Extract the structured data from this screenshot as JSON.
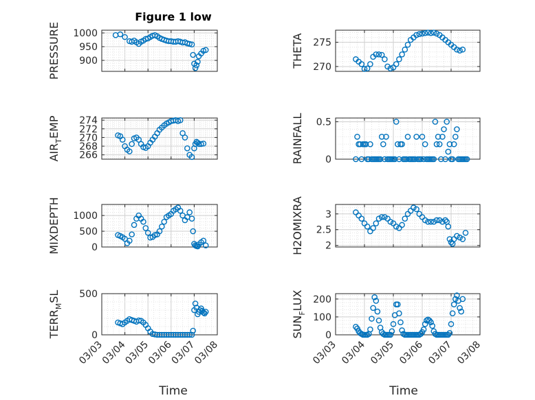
{
  "figure": {
    "title": "Figure 1 low",
    "series_color": "#0072BD"
  },
  "chart_data": [
    {
      "type": "scatter",
      "id": "pressure",
      "ylabel": "PRESSURE",
      "xlabel": "",
      "ylim": [
        860,
        1010
      ],
      "yticks": [
        900,
        950,
        1000
      ],
      "xlim": [
        "03/03",
        "03/08"
      ],
      "grid": true,
      "x": [
        3.6,
        3.8,
        4.0,
        4.2,
        4.3,
        4.4,
        4.5,
        4.6,
        4.7,
        4.8,
        4.9,
        5.0,
        5.1,
        5.2,
        5.3,
        5.4,
        5.5,
        5.6,
        5.7,
        5.8,
        5.9,
        6.0,
        6.1,
        6.2,
        6.3,
        6.4,
        6.5,
        6.6,
        6.7,
        6.8,
        6.9,
        6.95,
        7.0,
        7.05,
        7.1,
        7.15,
        7.2,
        7.3,
        7.4,
        7.5
      ],
      "y": [
        992,
        995,
        985,
        970,
        968,
        972,
        966,
        960,
        968,
        972,
        978,
        980,
        985,
        990,
        992,
        988,
        982,
        978,
        975,
        972,
        970,
        970,
        968,
        968,
        970,
        968,
        965,
        966,
        962,
        960,
        958,
        920,
        888,
        872,
        882,
        895,
        915,
        925,
        935,
        938
      ]
    },
    {
      "type": "scatter",
      "id": "theta",
      "ylabel": "THETA",
      "xlabel": "",
      "ylim": [
        269,
        277.5
      ],
      "yticks": [
        270,
        275
      ],
      "xlim": [
        "03/03",
        "03/08"
      ],
      "grid": true,
      "x": [
        3.7,
        3.8,
        3.9,
        4.0,
        4.1,
        4.2,
        4.3,
        4.4,
        4.5,
        4.6,
        4.7,
        4.8,
        4.9,
        5.0,
        5.1,
        5.2,
        5.3,
        5.4,
        5.5,
        5.6,
        5.7,
        5.8,
        5.9,
        6.0,
        6.1,
        6.2,
        6.3,
        6.4,
        6.5,
        6.6,
        6.7,
        6.8,
        6.9,
        7.0,
        7.1,
        7.2,
        7.3,
        7.4
      ],
      "y": [
        271.5,
        271,
        270.5,
        269.5,
        269.6,
        270.5,
        272,
        272.5,
        272.5,
        272.4,
        271.5,
        270,
        269.6,
        269.8,
        270.5,
        271.5,
        272.5,
        273.5,
        274.5,
        275.5,
        276,
        276.5,
        276.7,
        276.8,
        276.9,
        277,
        276.9,
        277,
        276.8,
        276.5,
        276,
        275.5,
        275,
        274.5,
        274,
        273.5,
        273.3,
        273.5
      ]
    },
    {
      "type": "scatter",
      "id": "air_temp",
      "ylabel": "AIR",
      "ylabel_sub": "T",
      "ylabel_suffix": "EMP",
      "xlabel": "",
      "ylim": [
        265,
        274.5
      ],
      "yticks": [
        266,
        268,
        270,
        272,
        274
      ],
      "xlim": [
        "03/03",
        "03/08"
      ],
      "grid": true,
      "x": [
        3.7,
        3.8,
        3.9,
        4.0,
        4.1,
        4.2,
        4.3,
        4.4,
        4.5,
        4.6,
        4.7,
        4.8,
        4.9,
        5.0,
        5.1,
        5.2,
        5.3,
        5.4,
        5.5,
        5.6,
        5.7,
        5.8,
        5.9,
        6.0,
        6.1,
        6.2,
        6.3,
        6.4,
        6.5,
        6.6,
        6.7,
        6.8,
        6.9,
        7.0,
        7.05,
        7.1,
        7.15,
        7.2,
        7.3,
        7.4
      ],
      "y": [
        270.5,
        270.3,
        269.5,
        268,
        267.2,
        266.8,
        268.5,
        269.8,
        270,
        269.5,
        268.5,
        267.8,
        267.6,
        268,
        268.8,
        269.5,
        270.2,
        271,
        271.8,
        272.3,
        272.8,
        273.2,
        273.5,
        273.8,
        273.9,
        274,
        273.8,
        274,
        271,
        270,
        267.5,
        266,
        265.5,
        267.5,
        268.5,
        269,
        268.8,
        268.5,
        268.5,
        268.6
      ]
    },
    {
      "type": "scatter",
      "id": "rainfall",
      "ylabel": "RAINFALL",
      "xlabel": "",
      "ylim": [
        0,
        0.55
      ],
      "yticks": [
        0,
        0.5
      ],
      "xlim": [
        "03/03",
        "03/08"
      ],
      "grid": true,
      "x": [
        3.7,
        3.75,
        3.8,
        3.85,
        3.9,
        3.95,
        4.0,
        4.05,
        4.1,
        4.15,
        4.2,
        4.25,
        4.3,
        4.35,
        4.4,
        4.45,
        4.5,
        4.55,
        4.6,
        4.65,
        4.7,
        4.75,
        4.8,
        4.85,
        4.9,
        4.95,
        5.0,
        5.05,
        5.1,
        5.15,
        5.2,
        5.25,
        5.3,
        5.35,
        5.4,
        5.45,
        5.5,
        5.55,
        5.6,
        5.65,
        5.7,
        5.75,
        5.8,
        5.85,
        5.9,
        5.95,
        6.0,
        6.05,
        6.1,
        6.15,
        6.2,
        6.25,
        6.3,
        6.35,
        6.4,
        6.45,
        6.5,
        6.55,
        6.6,
        6.65,
        6.7,
        6.75,
        6.8,
        6.85,
        6.9,
        6.95,
        7.0,
        7.05,
        7.1,
        7.15,
        7.2,
        7.25,
        7.3,
        7.35,
        7.4,
        7.45,
        7.5,
        7.55
      ],
      "y": [
        0,
        0.3,
        0.2,
        0.2,
        0,
        0.2,
        0.2,
        0.2,
        0,
        0,
        0.2,
        0,
        0,
        0,
        0,
        0,
        0,
        0,
        0.3,
        0.2,
        0,
        0.3,
        0,
        0,
        0,
        0,
        0,
        0,
        0.5,
        0.2,
        0,
        0.2,
        0.2,
        0,
        0,
        0,
        0.3,
        0,
        0,
        0,
        0,
        0,
        0.3,
        0,
        0,
        0,
        0.3,
        0,
        0.2,
        0,
        0,
        0,
        0,
        0,
        0,
        0.5,
        0.2,
        0.3,
        0.2,
        0,
        0.3,
        0.4,
        0,
        0.5,
        0.1,
        0.2,
        0,
        0,
        0.2,
        0.3,
        0.4,
        0,
        0,
        0,
        0,
        0,
        0,
        0
      ]
    },
    {
      "type": "scatter",
      "id": "mixdepth",
      "ylabel": "MIXDEPTH",
      "xlabel": "",
      "ylim": [
        0,
        1350
      ],
      "yticks": [
        0,
        500,
        1000
      ],
      "xlim": [
        "03/03",
        "03/08"
      ],
      "grid": true,
      "x": [
        3.7,
        3.8,
        3.9,
        4.0,
        4.1,
        4.2,
        4.3,
        4.4,
        4.5,
        4.6,
        4.7,
        4.8,
        4.9,
        5.0,
        5.1,
        5.2,
        5.3,
        5.4,
        5.5,
        5.6,
        5.7,
        5.8,
        5.9,
        6.0,
        6.1,
        6.2,
        6.3,
        6.4,
        6.5,
        6.6,
        6.7,
        6.8,
        6.9,
        6.95,
        7.0,
        7.05,
        7.1,
        7.15,
        7.2,
        7.3,
        7.4,
        7.5
      ],
      "y": [
        380,
        350,
        310,
        260,
        120,
        200,
        400,
        700,
        900,
        1000,
        900,
        800,
        600,
        450,
        300,
        320,
        380,
        400,
        500,
        650,
        800,
        950,
        1000,
        1050,
        1150,
        1200,
        1250,
        1150,
        1000,
        850,
        950,
        1100,
        900,
        500,
        100,
        50,
        30,
        20,
        80,
        150,
        200,
        50
      ]
    },
    {
      "type": "scatter",
      "id": "h2omixra",
      "ylabel": "H2OMIXRA",
      "xlabel": "",
      "ylim": [
        1.95,
        3.3
      ],
      "yticks": [
        2,
        2.5,
        3
      ],
      "xlim": [
        "03/03",
        "03/08"
      ],
      "grid": true,
      "x": [
        3.7,
        3.8,
        3.9,
        4.0,
        4.1,
        4.2,
        4.3,
        4.4,
        4.5,
        4.6,
        4.7,
        4.8,
        4.9,
        5.0,
        5.1,
        5.2,
        5.3,
        5.4,
        5.5,
        5.6,
        5.7,
        5.8,
        5.9,
        6.0,
        6.1,
        6.2,
        6.3,
        6.4,
        6.5,
        6.6,
        6.7,
        6.8,
        6.85,
        6.9,
        6.95,
        7.0,
        7.05,
        7.1,
        7.2,
        7.3,
        7.4,
        7.5
      ],
      "y": [
        3.05,
        2.95,
        2.85,
        2.7,
        2.6,
        2.45,
        2.55,
        2.7,
        2.85,
        2.9,
        2.9,
        2.85,
        2.75,
        2.7,
        2.6,
        2.55,
        2.65,
        2.85,
        3.0,
        3.1,
        3.2,
        3.15,
        3.0,
        2.9,
        2.8,
        2.75,
        2.75,
        2.75,
        2.8,
        2.8,
        2.75,
        2.8,
        2.75,
        2.6,
        2.2,
        2.1,
        2.05,
        2.2,
        2.3,
        2.25,
        2.2,
        2.4
      ]
    },
    {
      "type": "scatter",
      "id": "terr_msl",
      "ylabel": "TERR",
      "ylabel_sub": "M",
      "ylabel_suffix": "SL",
      "xlabel": "Time",
      "ylim": [
        0,
        500
      ],
      "yticks": [
        0,
        500
      ],
      "xlim": [
        "03/03",
        "03/08"
      ],
      "xticks": [
        "03/03",
        "03/04",
        "03/05",
        "03/06",
        "03/07",
        "03/08"
      ],
      "grid": true,
      "x": [
        3.7,
        3.8,
        3.9,
        4.0,
        4.1,
        4.2,
        4.3,
        4.4,
        4.5,
        4.6,
        4.7,
        4.8,
        4.9,
        5.0,
        5.1,
        5.2,
        5.3,
        5.4,
        5.5,
        5.6,
        5.7,
        5.8,
        5.9,
        6.0,
        6.1,
        6.2,
        6.3,
        6.4,
        6.5,
        6.6,
        6.7,
        6.8,
        6.9,
        6.95,
        7.0,
        7.05,
        7.1,
        7.15,
        7.2,
        7.25,
        7.3,
        7.35,
        7.4,
        7.45,
        7.5
      ],
      "y": [
        150,
        140,
        130,
        150,
        170,
        190,
        180,
        170,
        160,
        175,
        170,
        150,
        120,
        80,
        40,
        10,
        5,
        0,
        0,
        0,
        0,
        0,
        0,
        0,
        0,
        0,
        0,
        0,
        0,
        0,
        0,
        0,
        0,
        50,
        300,
        380,
        330,
        250,
        280,
        300,
        320,
        290,
        270,
        260,
        280
      ]
    },
    {
      "type": "scatter",
      "id": "sun_flux",
      "ylabel": "SUN",
      "ylabel_sub": "F",
      "ylabel_suffix": "LUX",
      "xlabel": "Time",
      "ylim": [
        0,
        230
      ],
      "yticks": [
        0,
        100,
        200
      ],
      "xlim": [
        "03/03",
        "03/08"
      ],
      "xticks": [
        "03/03",
        "03/04",
        "03/05",
        "03/06",
        "03/07",
        "03/08"
      ],
      "grid": true,
      "x": [
        3.7,
        3.75,
        3.8,
        3.85,
        3.9,
        3.95,
        4.0,
        4.05,
        4.1,
        4.15,
        4.2,
        4.25,
        4.3,
        4.35,
        4.4,
        4.45,
        4.5,
        4.55,
        4.6,
        4.65,
        4.7,
        4.75,
        4.8,
        4.85,
        4.9,
        4.95,
        5.0,
        5.05,
        5.1,
        5.15,
        5.2,
        5.25,
        5.3,
        5.35,
        5.4,
        5.45,
        5.5,
        5.55,
        5.6,
        5.65,
        5.7,
        5.75,
        5.8,
        5.85,
        5.9,
        5.95,
        6.0,
        6.05,
        6.1,
        6.15,
        6.2,
        6.25,
        6.3,
        6.35,
        6.4,
        6.45,
        6.5,
        6.55,
        6.6,
        6.65,
        6.7,
        6.75,
        6.8,
        6.85,
        6.9,
        6.95,
        7.0,
        7.05,
        7.1,
        7.15,
        7.2,
        7.25,
        7.3,
        7.35,
        7.4
      ],
      "y": [
        45,
        35,
        20,
        10,
        5,
        0,
        0,
        0,
        0,
        5,
        30,
        90,
        150,
        210,
        190,
        130,
        80,
        40,
        15,
        5,
        0,
        0,
        0,
        0,
        0,
        20,
        60,
        110,
        170,
        170,
        120,
        70,
        25,
        5,
        0,
        0,
        0,
        0,
        0,
        0,
        0,
        0,
        0,
        0,
        0,
        5,
        15,
        30,
        60,
        80,
        85,
        80,
        70,
        50,
        20,
        5,
        0,
        0,
        0,
        0,
        0,
        0,
        0,
        0,
        0,
        10,
        60,
        120,
        170,
        200,
        220,
        190,
        150,
        130,
        200
      ]
    }
  ]
}
